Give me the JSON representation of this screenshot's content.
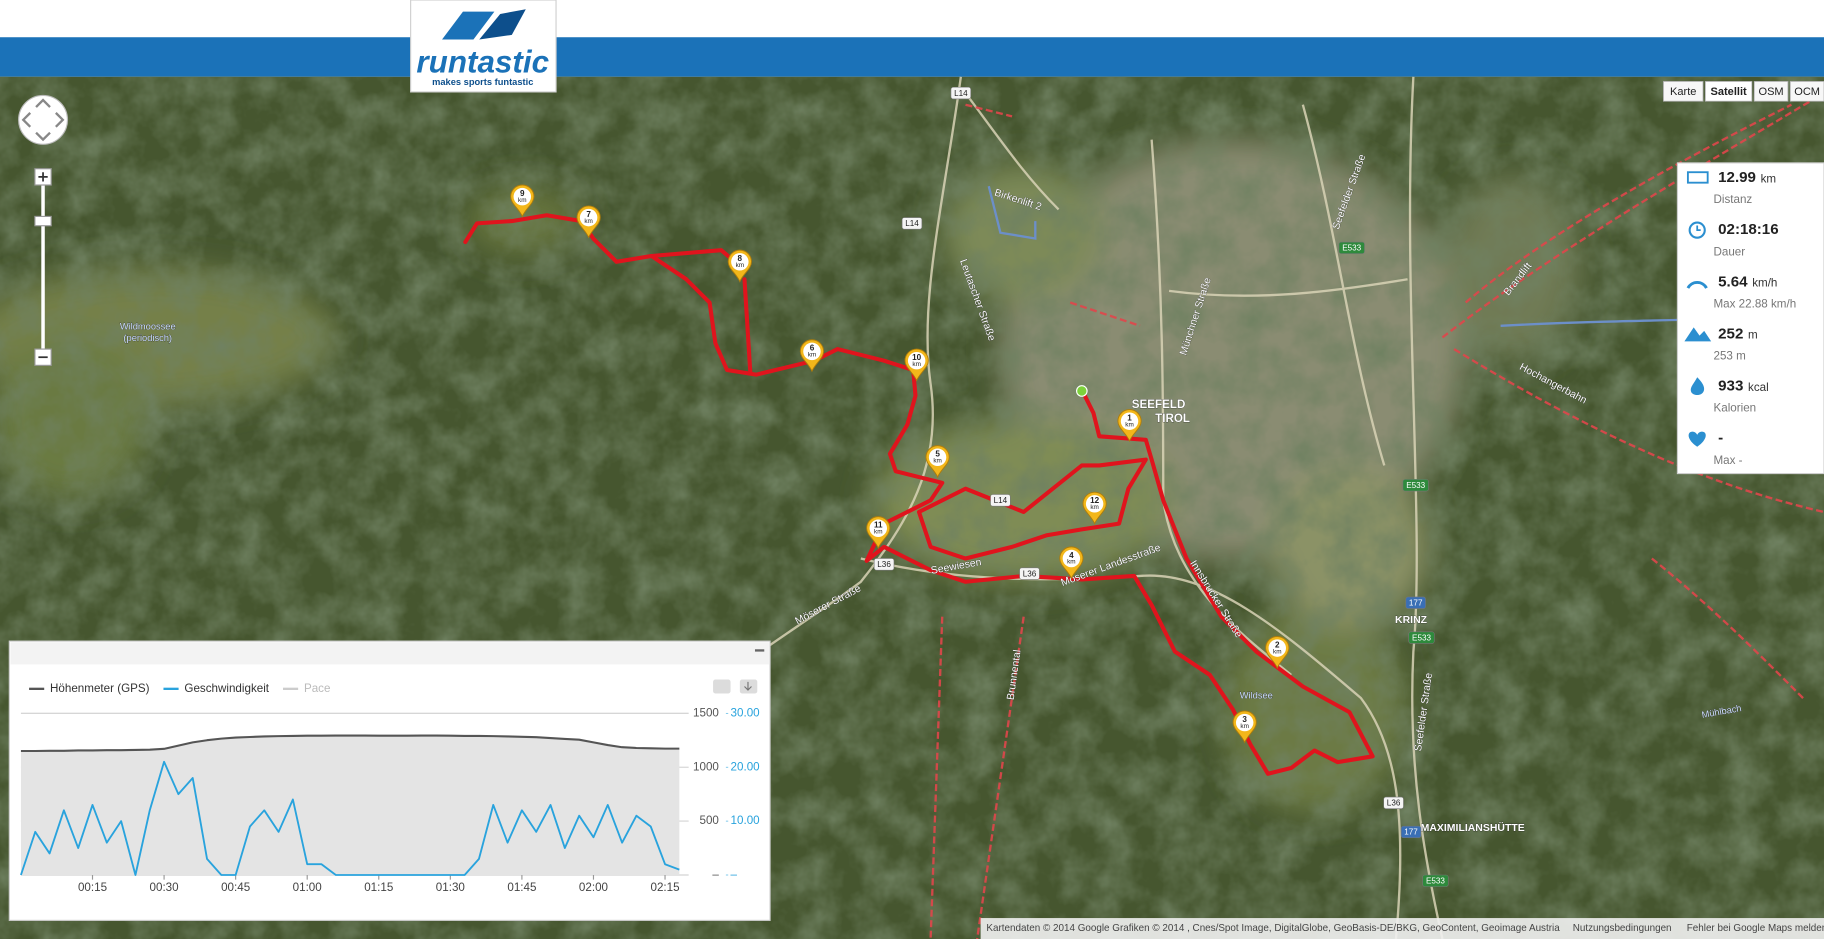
{
  "header": {
    "logo": "runtastic",
    "tagline": "makes sports funtastic"
  },
  "map_types": [
    "Karte",
    "Satellit",
    "OSM",
    "OCM"
  ],
  "active_map_type": 1,
  "stats": [
    {
      "value": "12.99",
      "unit": "km",
      "label": "Distanz"
    },
    {
      "value": "02:18:16",
      "label": "Dauer"
    },
    {
      "value": "5.64",
      "unit": "km/h",
      "label": "Max 22.88 km/h"
    },
    {
      "value": "252",
      "unit": "m",
      "label": "253 m"
    },
    {
      "value": "933",
      "unit": "kcal",
      "label": "Kalorien"
    },
    {
      "value": "-",
      "label": "Max -"
    }
  ],
  "km_markers": [
    "1",
    "2",
    "3",
    "4",
    "5",
    "6",
    "7",
    "8",
    "9",
    "10",
    "11",
    "12"
  ],
  "km_unit": "km",
  "map_labels": [
    "SEEFELD",
    "TIROL",
    "KRINZ",
    "MAXIMILIANSHÜTTE",
    "Wildmoossee",
    "(periodisch)",
    "Wildsee",
    "Möserer Landesstraße",
    "Innsbrucker Straße",
    "Münchner Straße",
    "Seefelder Straße",
    "Hochangerbahn",
    "Brunnental",
    "Birkenlift 2",
    "Mühlbach",
    "Möserer Straße",
    "Seewiesen",
    "Leutascher Straße",
    "Brandlift",
    "Seefelder Straße"
  ],
  "road_shields": [
    "L14",
    "L14",
    "L14",
    "L36",
    "L36",
    "L36",
    "E533",
    "E533",
    "E533",
    "E533",
    "177",
    "177"
  ],
  "footer": {
    "attribution": "Kartendaten © 2014 Google Grafiken © 2014 , Cnes/Spot Image, DigitalGlobe, GeoBasis-DE/BKG, GeoContent, Geoimage Austria",
    "terms": "Nutzungsbedingungen",
    "report": "Fehler bei Google Maps melden"
  },
  "chart": {
    "type": "line",
    "x": [
      0,
      3,
      6,
      9,
      12,
      15,
      18,
      21,
      24,
      27,
      30,
      33,
      36,
      39,
      42,
      45,
      48,
      51,
      54,
      57,
      60,
      63,
      66,
      69,
      72,
      75,
      78,
      81,
      84,
      87,
      90,
      93,
      96,
      99,
      102,
      105,
      108,
      111,
      114,
      117,
      120,
      123,
      126,
      129,
      132,
      135,
      138
    ],
    "xlim": [
      0,
      138
    ],
    "xticks": [
      {
        "value": 15,
        "label": "00:15"
      },
      {
        "value": 30,
        "label": "00:30"
      },
      {
        "value": 45,
        "label": "00:45"
      },
      {
        "value": 60,
        "label": "01:00"
      },
      {
        "value": 75,
        "label": "01:15"
      },
      {
        "value": 90,
        "label": "01:30"
      },
      {
        "value": 105,
        "label": "01:45"
      },
      {
        "value": 120,
        "label": "02:00"
      },
      {
        "value": 135,
        "label": "02:15"
      }
    ],
    "ylim": [
      0,
      1500
    ],
    "yticks": [
      {
        "value": 0,
        "label": "–"
      },
      500,
      1000,
      1500
    ],
    "y2lim": [
      0,
      30
    ],
    "y2ticks": [
      {
        "value": 0,
        "label": "–"
      },
      {
        "value": 10,
        "label": "10.00"
      },
      {
        "value": 20,
        "label": "20.00"
      },
      {
        "value": 30,
        "label": "30.00"
      }
    ],
    "grid": true,
    "series": [
      {
        "name": "Höhenmeter (GPS)",
        "color": "#555555",
        "fill": "#e4e4e4",
        "values": [
          1150,
          1150,
          1152,
          1152,
          1155,
          1155,
          1158,
          1158,
          1160,
          1162,
          1170,
          1200,
          1230,
          1250,
          1265,
          1275,
          1280,
          1285,
          1288,
          1290,
          1292,
          1292,
          1293,
          1293,
          1293,
          1292,
          1292,
          1292,
          1293,
          1293,
          1292,
          1290,
          1290,
          1288,
          1285,
          1282,
          1278,
          1270,
          1262,
          1255,
          1230,
          1205,
          1185,
          1178,
          1175,
          1172,
          1172
        ]
      },
      {
        "name": "Geschwindigkeit",
        "color": "#29a3dd",
        "axis": "y2",
        "values": [
          0,
          8,
          4,
          12,
          5,
          13,
          6,
          10,
          0,
          12,
          21,
          15,
          18,
          3,
          0,
          0,
          9,
          12,
          8,
          14,
          2,
          2,
          0,
          0,
          0,
          0,
          0,
          0,
          0,
          0,
          0,
          0,
          3,
          13,
          6,
          12,
          8,
          13,
          5,
          11,
          7,
          13,
          6,
          11,
          9,
          2,
          1
        ]
      }
    ],
    "hidden_series": [
      {
        "name": "Pace",
        "color": "#cccccc"
      }
    ]
  }
}
